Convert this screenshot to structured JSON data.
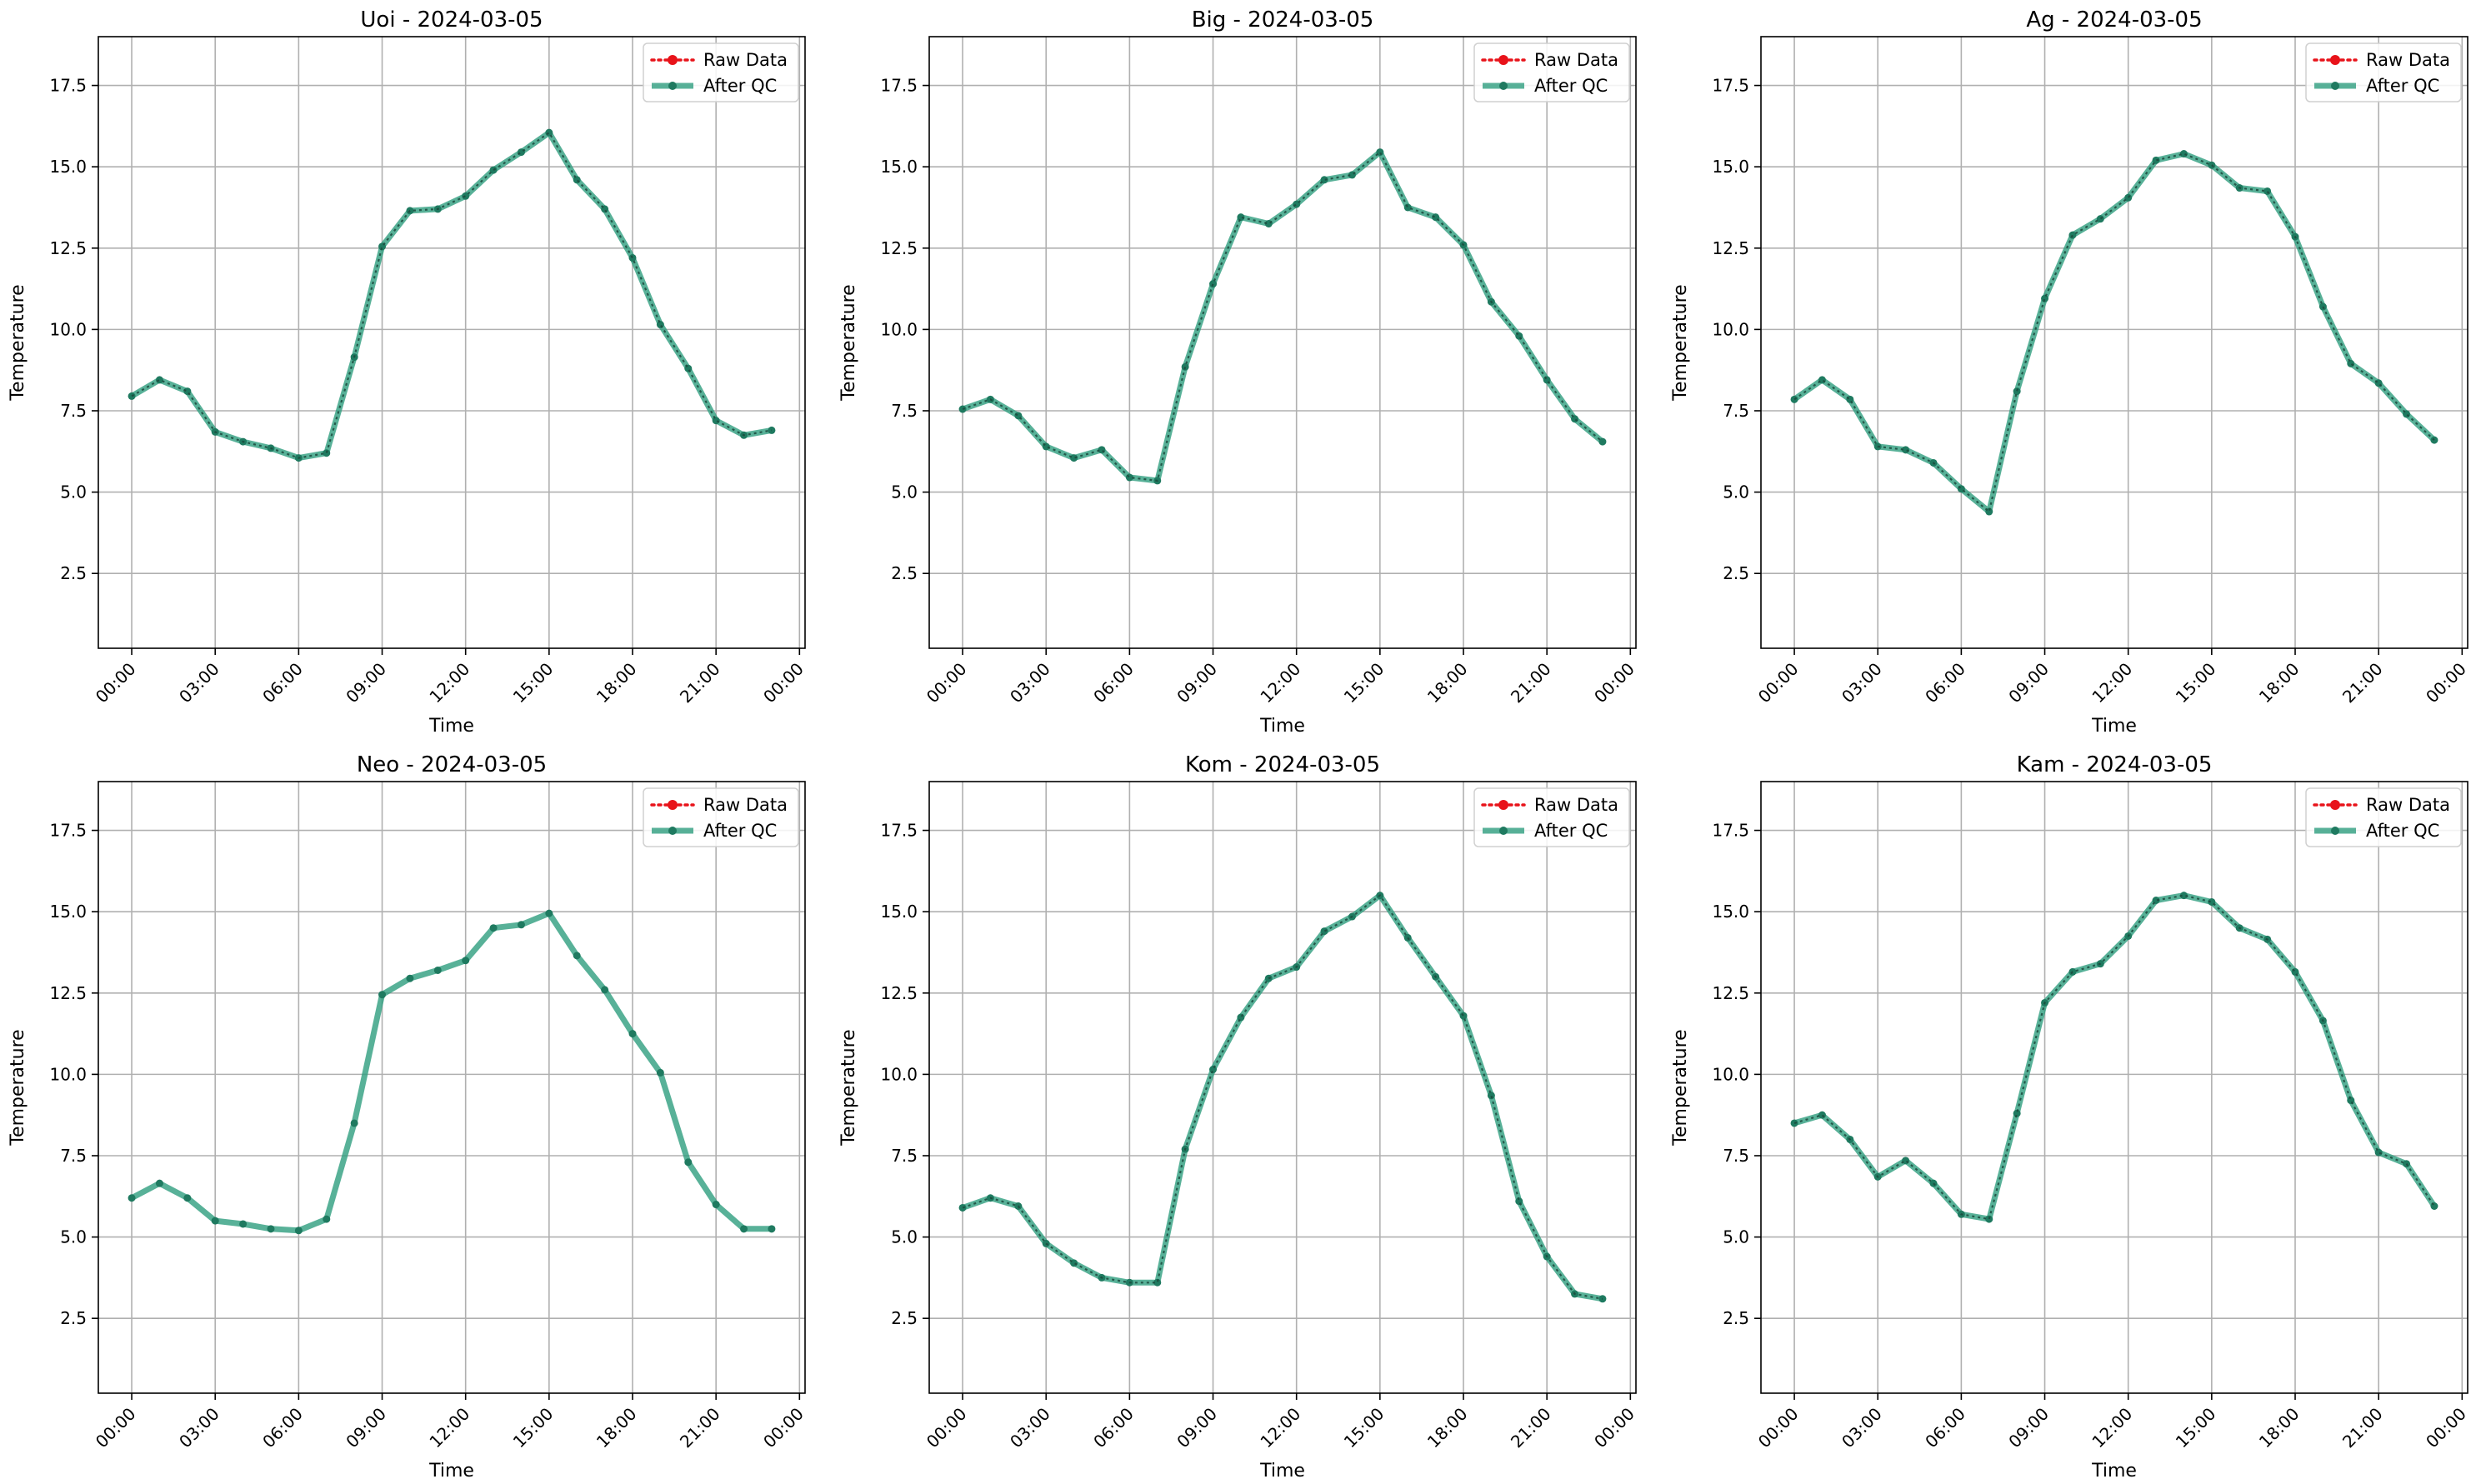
{
  "colors": {
    "raw": "#e8131a",
    "qc": "#2e9e7e",
    "qc_marker": "#1f7a60",
    "grid": "#b0b0b0"
  },
  "chart_data": [
    {
      "type": "line",
      "title": "Uoi - 2024-03-05",
      "xlabel": "Time",
      "ylabel": "Temperature",
      "x_ticks": [
        "00:00",
        "03:00",
        "06:00",
        "09:00",
        "12:00",
        "15:00",
        "18:00",
        "21:00",
        "00:00"
      ],
      "y_ticks": [
        "2.5",
        "5.0",
        "7.5",
        "10.0",
        "12.5",
        "15.0",
        "17.5"
      ],
      "xlim_hours": [
        -1.2,
        24.2
      ],
      "ylim": [
        0.2,
        19.0
      ],
      "grid": true,
      "legend": "top-right",
      "raw_visible": true,
      "series": [
        {
          "name": "Raw Data",
          "values": [
            7.95,
            8.45,
            8.1,
            6.85,
            6.55,
            6.35,
            6.05,
            6.2,
            9.15,
            12.55,
            13.65,
            13.7,
            14.1,
            14.9,
            15.45,
            16.05,
            14.6,
            13.7,
            12.2,
            10.15,
            8.8,
            7.2,
            6.75,
            6.9
          ]
        },
        {
          "name": "After QC",
          "values": [
            7.95,
            8.45,
            8.1,
            6.85,
            6.55,
            6.35,
            6.05,
            6.2,
            9.15,
            12.55,
            13.65,
            13.7,
            14.1,
            14.9,
            15.45,
            16.05,
            14.6,
            13.7,
            12.2,
            10.15,
            8.8,
            7.2,
            6.75,
            6.9
          ]
        }
      ]
    },
    {
      "type": "line",
      "title": "Big - 2024-03-05",
      "xlabel": "Time",
      "ylabel": "Temperature",
      "x_ticks": [
        "00:00",
        "03:00",
        "06:00",
        "09:00",
        "12:00",
        "15:00",
        "18:00",
        "21:00",
        "00:00"
      ],
      "y_ticks": [
        "2.5",
        "5.0",
        "7.5",
        "10.0",
        "12.5",
        "15.0",
        "17.5"
      ],
      "xlim_hours": [
        -1.2,
        24.2
      ],
      "ylim": [
        0.2,
        19.0
      ],
      "grid": true,
      "legend": "top-right",
      "raw_visible": true,
      "series": [
        {
          "name": "Raw Data",
          "values": [
            7.55,
            7.85,
            7.35,
            6.4,
            6.05,
            6.3,
            5.45,
            5.35,
            8.85,
            11.4,
            13.45,
            13.25,
            13.85,
            14.6,
            14.75,
            15.45,
            13.75,
            13.45,
            12.6,
            10.85,
            9.8,
            8.45,
            7.25,
            6.55
          ]
        },
        {
          "name": "After QC",
          "values": [
            7.55,
            7.85,
            7.35,
            6.4,
            6.05,
            6.3,
            5.45,
            5.35,
            8.85,
            11.4,
            13.45,
            13.25,
            13.85,
            14.6,
            14.75,
            15.45,
            13.75,
            13.45,
            12.6,
            10.85,
            9.8,
            8.45,
            7.25,
            6.55
          ]
        }
      ]
    },
    {
      "type": "line",
      "title": "Ag - 2024-03-05",
      "xlabel": "Time",
      "ylabel": "Temperature",
      "x_ticks": [
        "00:00",
        "03:00",
        "06:00",
        "09:00",
        "12:00",
        "15:00",
        "18:00",
        "21:00",
        "00:00"
      ],
      "y_ticks": [
        "2.5",
        "5.0",
        "7.5",
        "10.0",
        "12.5",
        "15.0",
        "17.5"
      ],
      "xlim_hours": [
        -1.2,
        24.2
      ],
      "ylim": [
        0.2,
        19.0
      ],
      "grid": true,
      "legend": "top-right",
      "raw_visible": true,
      "series": [
        {
          "name": "Raw Data",
          "values": [
            7.85,
            8.45,
            7.85,
            6.4,
            6.3,
            5.9,
            5.1,
            4.4,
            8.1,
            10.95,
            12.9,
            13.4,
            14.05,
            15.2,
            15.4,
            15.05,
            14.35,
            14.25,
            12.85,
            10.7,
            8.95,
            8.35,
            7.4,
            6.6
          ]
        },
        {
          "name": "After QC",
          "values": [
            7.85,
            8.45,
            7.85,
            6.4,
            6.3,
            5.9,
            5.1,
            4.4,
            8.1,
            10.95,
            12.9,
            13.4,
            14.05,
            15.2,
            15.4,
            15.05,
            14.35,
            14.25,
            12.85,
            10.7,
            8.95,
            8.35,
            7.4,
            6.6
          ]
        }
      ]
    },
    {
      "type": "line",
      "title": "Neo - 2024-03-05",
      "xlabel": "Time",
      "ylabel": "Temperature",
      "x_ticks": [
        "00:00",
        "03:00",
        "06:00",
        "09:00",
        "12:00",
        "15:00",
        "18:00",
        "21:00",
        "00:00"
      ],
      "y_ticks": [
        "2.5",
        "5.0",
        "7.5",
        "10.0",
        "12.5",
        "15.0",
        "17.5"
      ],
      "xlim_hours": [
        -1.2,
        24.2
      ],
      "ylim": [
        0.2,
        19.0
      ],
      "grid": true,
      "legend": "top-right",
      "raw_visible": false,
      "series": [
        {
          "name": "Raw Data",
          "values": [
            6.2,
            6.65,
            6.2,
            5.5,
            5.4,
            5.25,
            5.2,
            5.55,
            8.5,
            12.45,
            12.95,
            13.2,
            13.5,
            14.5,
            14.6,
            14.95,
            13.65,
            12.6,
            11.25,
            10.05,
            7.3,
            6.0,
            5.25,
            5.25
          ]
        },
        {
          "name": "After QC",
          "values": [
            6.2,
            6.65,
            6.2,
            5.5,
            5.4,
            5.25,
            5.2,
            5.55,
            8.5,
            12.45,
            12.95,
            13.2,
            13.5,
            14.5,
            14.6,
            14.95,
            13.65,
            12.6,
            11.25,
            10.05,
            7.3,
            6.0,
            5.25,
            5.25
          ]
        }
      ]
    },
    {
      "type": "line",
      "title": "Kom - 2024-03-05",
      "xlabel": "Time",
      "ylabel": "Temperature",
      "x_ticks": [
        "00:00",
        "03:00",
        "06:00",
        "09:00",
        "12:00",
        "15:00",
        "18:00",
        "21:00",
        "00:00"
      ],
      "y_ticks": [
        "2.5",
        "5.0",
        "7.5",
        "10.0",
        "12.5",
        "15.0",
        "17.5"
      ],
      "xlim_hours": [
        -1.2,
        24.2
      ],
      "ylim": [
        0.2,
        19.0
      ],
      "grid": true,
      "legend": "top-right",
      "raw_visible": true,
      "series": [
        {
          "name": "Raw Data",
          "values": [
            5.9,
            6.2,
            5.95,
            4.8,
            4.2,
            3.75,
            3.6,
            3.6,
            7.7,
            10.15,
            11.75,
            12.95,
            13.3,
            14.4,
            14.85,
            15.5,
            14.2,
            13.0,
            11.8,
            9.35,
            6.1,
            4.4,
            3.25,
            3.1
          ]
        },
        {
          "name": "After QC",
          "values": [
            5.9,
            6.2,
            5.95,
            4.8,
            4.2,
            3.75,
            3.6,
            3.6,
            7.7,
            10.15,
            11.75,
            12.95,
            13.3,
            14.4,
            14.85,
            15.5,
            14.2,
            13.0,
            11.8,
            9.35,
            6.1,
            4.4,
            3.25,
            3.1
          ]
        }
      ]
    },
    {
      "type": "line",
      "title": "Kam - 2024-03-05",
      "xlabel": "Time",
      "ylabel": "Temperature",
      "x_ticks": [
        "00:00",
        "03:00",
        "06:00",
        "09:00",
        "12:00",
        "15:00",
        "18:00",
        "21:00",
        "00:00"
      ],
      "y_ticks": [
        "2.5",
        "5.0",
        "7.5",
        "10.0",
        "12.5",
        "15.0",
        "17.5"
      ],
      "xlim_hours": [
        -1.2,
        24.2
      ],
      "ylim": [
        0.2,
        19.0
      ],
      "grid": true,
      "legend": "top-right",
      "raw_visible": true,
      "series": [
        {
          "name": "Raw Data",
          "values": [
            8.5,
            8.75,
            8.0,
            6.85,
            7.35,
            6.65,
            5.7,
            5.55,
            8.8,
            12.2,
            13.15,
            13.4,
            14.25,
            15.35,
            15.5,
            15.3,
            14.5,
            14.15,
            13.15,
            11.65,
            9.2,
            7.6,
            7.25,
            5.95
          ]
        },
        {
          "name": "After QC",
          "values": [
            8.5,
            8.75,
            8.0,
            6.85,
            7.35,
            6.65,
            5.7,
            5.55,
            8.8,
            12.2,
            13.15,
            13.4,
            14.25,
            15.35,
            15.5,
            15.3,
            14.5,
            14.15,
            13.15,
            11.65,
            9.2,
            7.6,
            7.25,
            5.95
          ]
        }
      ]
    }
  ]
}
